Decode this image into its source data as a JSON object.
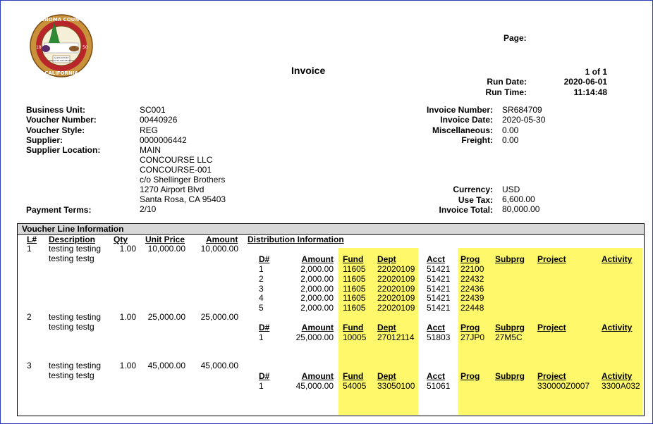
{
  "seal": {
    "ring_top": "SONOMA COUNTY",
    "ring_bottom": "CALIFORNIA",
    "year_left": "18",
    "year_right": "50",
    "banner": "AGRICULTURE INDUSTRY RECREATION"
  },
  "header": {
    "title": "Invoice",
    "page_label": "Page:",
    "page_value": "1 of 1",
    "run_date_label": "Run Date:",
    "run_date": "2020-06-01",
    "run_time_label": "Run Time:",
    "run_time": "11:14:48"
  },
  "voucher": {
    "business_unit_label": "Business Unit:",
    "business_unit": "SC001",
    "voucher_number_label": "Voucher Number:",
    "voucher_number": "00440926",
    "voucher_style_label": "Voucher Style:",
    "voucher_style": "REG",
    "supplier_label": "Supplier:",
    "supplier": "0000006442",
    "supplier_location_label": "Supplier Location:",
    "address": [
      "MAIN",
      "CONCOURSE LLC",
      "CONCOURSE-001",
      "c/o Shellinger Brothers",
      "1270 Airport Blvd",
      "Santa Rosa, CA  95403"
    ],
    "payment_terms_label": "Payment Terms:",
    "payment_terms": "2/10"
  },
  "invoice": {
    "invoice_number_label": "Invoice Number:",
    "invoice_number": "SR684709",
    "invoice_date_label": "Invoice Date:",
    "invoice_date": "2020-05-30",
    "misc_label": "Miscellaneous:",
    "misc": "0.00",
    "freight_label": "Freight:",
    "freight": "0.00",
    "currency_label": "Currency:",
    "currency": "USD",
    "use_tax_label": "Use Tax:",
    "use_tax": "6,600.00",
    "invoice_total_label": "Invoice Total:",
    "invoice_total": "80,000.00"
  },
  "lines_section": {
    "title": "Voucher Line Information",
    "headers": {
      "line": "L#",
      "description": "Description",
      "qty": "Qty",
      "unit_price": "Unit Price",
      "amount": "Amount",
      "distribution": "Distribution Information"
    },
    "dist_headers": {
      "d": "D#",
      "amount": "Amount",
      "fund": "Fund",
      "dept": "Dept",
      "acct": "Acct",
      "prog": "Prog",
      "subprg": "Subprg",
      "project": "Project",
      "activity": "Activity"
    },
    "lines": [
      {
        "no": "1",
        "desc1": "testing testing",
        "desc2": "testing testg",
        "qty": "1.00",
        "unit_price": "10,000.00",
        "amount": "10,000.00",
        "dist": {
          "d": [
            "1",
            "2",
            "3",
            "4",
            "5"
          ],
          "amount": [
            "2,000.00",
            "2,000.00",
            "2,000.00",
            "2,000.00",
            "2,000.00"
          ],
          "fund": [
            "11605",
            "11605",
            "11605",
            "11605",
            "11605"
          ],
          "dept": [
            "22020109",
            "22020109",
            "22020109",
            "22020109",
            "22020109"
          ],
          "acct": [
            "51421",
            "51421",
            "51421",
            "51421",
            "51421"
          ],
          "prog": [
            "22100",
            "22432",
            "22436",
            "22439",
            "22448"
          ],
          "subprg": [
            "",
            "",
            "",
            "",
            ""
          ],
          "project": [
            "",
            "",
            "",
            "",
            ""
          ],
          "activity": [
            "",
            "",
            "",
            "",
            ""
          ]
        }
      },
      {
        "no": "2",
        "desc1": "testing testing",
        "desc2": "testing testg",
        "qty": "1.00",
        "unit_price": "25,000.00",
        "amount": "25,000.00",
        "dist": {
          "d": [
            "1"
          ],
          "amount": [
            "25,000.00"
          ],
          "fund": [
            "10005"
          ],
          "dept": [
            "27012114"
          ],
          "acct": [
            "51803"
          ],
          "prog": [
            "27JP0"
          ],
          "subprg": [
            "27M5C"
          ],
          "project": [
            ""
          ],
          "activity": [
            ""
          ]
        }
      },
      {
        "no": "3",
        "desc1": "testing testing",
        "desc2": "testing testg",
        "qty": "1.00",
        "unit_price": "45,000.00",
        "amount": "45,000.00",
        "dist": {
          "d": [
            "1"
          ],
          "amount": [
            "45,000.00"
          ],
          "fund": [
            "54005"
          ],
          "dept": [
            "33050100"
          ],
          "acct": [
            "51061"
          ],
          "prog": [
            ""
          ],
          "subprg": [
            ""
          ],
          "project": [
            "330000Z0007"
          ],
          "activity": [
            "3300A032"
          ]
        }
      }
    ]
  }
}
